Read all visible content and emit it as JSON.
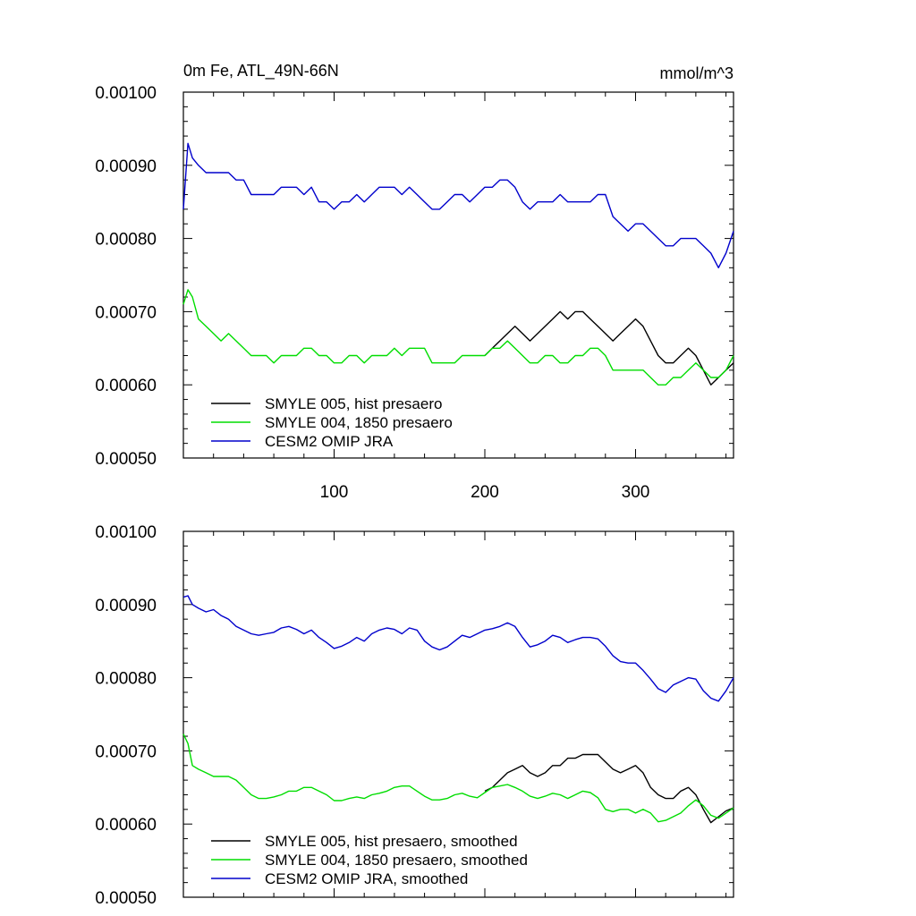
{
  "chart_data": [
    {
      "type": "line",
      "title": "0m Fe, ATL_49N-66N",
      "units": "mmol/m^3",
      "xlim": [
        0,
        365
      ],
      "ylim": [
        0.0005,
        0.001
      ],
      "yticks": [
        "0.00050",
        "0.00060",
        "0.00070",
        "0.00080",
        "0.00090",
        "0.00100"
      ],
      "xticks": [
        "100",
        "200",
        "300"
      ],
      "grid": false,
      "legend_position": "bottom-left",
      "series": [
        {
          "name": "SMYLE 005, hist presaero",
          "color": "#000000",
          "x": [
            200,
            205,
            210,
            215,
            220,
            225,
            230,
            235,
            240,
            245,
            250,
            255,
            260,
            265,
            270,
            275,
            280,
            285,
            290,
            295,
            300,
            305,
            310,
            315,
            320,
            325,
            330,
            335,
            340,
            345,
            350,
            355,
            360,
            365
          ],
          "values": [
            0.00064,
            0.00065,
            0.00066,
            0.00067,
            0.00068,
            0.00067,
            0.00066,
            0.00067,
            0.00068,
            0.00069,
            0.0007,
            0.00069,
            0.0007,
            0.0007,
            0.00069,
            0.00068,
            0.00067,
            0.00066,
            0.00067,
            0.00068,
            0.00069,
            0.00068,
            0.00066,
            0.00064,
            0.00063,
            0.00063,
            0.00064,
            0.00065,
            0.00064,
            0.00062,
            0.0006,
            0.00061,
            0.00062,
            0.00063
          ]
        },
        {
          "name": "SMYLE 004, 1850 presaero",
          "color": "#00dd00",
          "x": [
            0,
            3,
            6,
            10,
            15,
            20,
            25,
            30,
            35,
            40,
            45,
            50,
            55,
            60,
            65,
            70,
            75,
            80,
            85,
            90,
            95,
            100,
            105,
            110,
            115,
            120,
            125,
            130,
            135,
            140,
            145,
            150,
            155,
            160,
            165,
            170,
            175,
            180,
            185,
            190,
            195,
            200,
            205,
            210,
            215,
            220,
            225,
            230,
            235,
            240,
            245,
            250,
            255,
            260,
            265,
            270,
            275,
            280,
            285,
            290,
            295,
            300,
            305,
            310,
            315,
            320,
            325,
            330,
            335,
            340,
            345,
            350,
            355,
            360,
            365
          ],
          "values": [
            0.00071,
            0.00073,
            0.00072,
            0.00069,
            0.00068,
            0.00067,
            0.00066,
            0.00067,
            0.00066,
            0.00065,
            0.00064,
            0.00064,
            0.00064,
            0.00063,
            0.00064,
            0.00064,
            0.00064,
            0.00065,
            0.00065,
            0.00064,
            0.00064,
            0.00063,
            0.00063,
            0.00064,
            0.00064,
            0.00063,
            0.00064,
            0.00064,
            0.00064,
            0.00065,
            0.00064,
            0.00065,
            0.00065,
            0.00065,
            0.00063,
            0.00063,
            0.00063,
            0.00063,
            0.00064,
            0.00064,
            0.00064,
            0.00064,
            0.00065,
            0.00065,
            0.00066,
            0.00065,
            0.00064,
            0.00063,
            0.00063,
            0.00064,
            0.00064,
            0.00063,
            0.00063,
            0.00064,
            0.00064,
            0.00065,
            0.00065,
            0.00064,
            0.00062,
            0.00062,
            0.00062,
            0.00062,
            0.00062,
            0.00061,
            0.0006,
            0.0006,
            0.00061,
            0.00061,
            0.00062,
            0.00063,
            0.00062,
            0.00061,
            0.00061,
            0.00062,
            0.00064
          ]
        },
        {
          "name": "CESM2 OMIP JRA",
          "color": "#0000cc",
          "x": [
            0,
            3,
            6,
            10,
            15,
            20,
            25,
            30,
            35,
            40,
            45,
            50,
            55,
            60,
            65,
            70,
            75,
            80,
            85,
            90,
            95,
            100,
            105,
            110,
            115,
            120,
            125,
            130,
            135,
            140,
            145,
            150,
            155,
            160,
            165,
            170,
            175,
            180,
            185,
            190,
            195,
            200,
            205,
            210,
            215,
            220,
            225,
            230,
            235,
            240,
            245,
            250,
            255,
            260,
            265,
            270,
            275,
            280,
            285,
            290,
            295,
            300,
            305,
            310,
            315,
            320,
            325,
            330,
            335,
            340,
            345,
            350,
            355,
            360,
            365
          ],
          "values": [
            0.00084,
            0.00093,
            0.00091,
            0.0009,
            0.00089,
            0.00089,
            0.00089,
            0.00089,
            0.00088,
            0.00088,
            0.00086,
            0.00086,
            0.00086,
            0.00086,
            0.00087,
            0.00087,
            0.00087,
            0.00086,
            0.00087,
            0.00085,
            0.00085,
            0.00084,
            0.00085,
            0.00085,
            0.00086,
            0.00085,
            0.00086,
            0.00087,
            0.00087,
            0.00087,
            0.00086,
            0.00087,
            0.00086,
            0.00085,
            0.00084,
            0.00084,
            0.00085,
            0.00086,
            0.00086,
            0.00085,
            0.00086,
            0.00087,
            0.00087,
            0.00088,
            0.00088,
            0.00087,
            0.00085,
            0.00084,
            0.00085,
            0.00085,
            0.00085,
            0.00086,
            0.00085,
            0.00085,
            0.00085,
            0.00085,
            0.00086,
            0.00086,
            0.00083,
            0.00082,
            0.00081,
            0.00082,
            0.00082,
            0.00081,
            0.0008,
            0.00079,
            0.00079,
            0.0008,
            0.0008,
            0.0008,
            0.00079,
            0.00078,
            0.00076,
            0.00078,
            0.00081
          ]
        }
      ]
    },
    {
      "type": "line",
      "xlim": [
        0,
        365
      ],
      "ylim": [
        0.0005,
        0.001
      ],
      "yticks": [
        "0.00050",
        "0.00060",
        "0.00070",
        "0.00080",
        "0.00090",
        "0.00100"
      ],
      "grid": false,
      "legend_position": "bottom-left",
      "series": [
        {
          "name": "SMYLE 005, hist presaero, smoothed",
          "color": "#000000",
          "x": [
            200,
            205,
            210,
            215,
            220,
            225,
            230,
            235,
            240,
            245,
            250,
            255,
            260,
            265,
            270,
            275,
            280,
            285,
            290,
            295,
            300,
            305,
            310,
            315,
            320,
            325,
            330,
            335,
            340,
            345,
            350,
            355,
            360,
            365
          ],
          "values": [
            0.000645,
            0.00065,
            0.00066,
            0.00067,
            0.000675,
            0.00068,
            0.00067,
            0.000665,
            0.00067,
            0.00068,
            0.00068,
            0.00069,
            0.00069,
            0.000695,
            0.000695,
            0.000695,
            0.000685,
            0.000675,
            0.00067,
            0.000675,
            0.00068,
            0.00067,
            0.00065,
            0.00064,
            0.000635,
            0.000635,
            0.000645,
            0.00065,
            0.00064,
            0.00062,
            0.000602,
            0.00061,
            0.000618,
            0.000622
          ]
        },
        {
          "name": "SMYLE 004, 1850 presaero, smoothed",
          "color": "#00dd00",
          "x": [
            0,
            3,
            6,
            10,
            15,
            20,
            25,
            30,
            35,
            40,
            45,
            50,
            55,
            60,
            65,
            70,
            75,
            80,
            85,
            90,
            95,
            100,
            105,
            110,
            115,
            120,
            125,
            130,
            135,
            140,
            145,
            150,
            155,
            160,
            165,
            170,
            175,
            180,
            185,
            190,
            195,
            200,
            205,
            210,
            215,
            220,
            225,
            230,
            235,
            240,
            245,
            250,
            255,
            260,
            265,
            270,
            275,
            280,
            285,
            290,
            295,
            300,
            305,
            310,
            315,
            320,
            325,
            330,
            335,
            340,
            345,
            350,
            355,
            360,
            365
          ],
          "values": [
            0.000723,
            0.00071,
            0.00068,
            0.000675,
            0.00067,
            0.000665,
            0.000665,
            0.000665,
            0.00066,
            0.00065,
            0.00064,
            0.000635,
            0.000635,
            0.000637,
            0.00064,
            0.000645,
            0.000645,
            0.00065,
            0.00065,
            0.000645,
            0.00064,
            0.000632,
            0.000632,
            0.000635,
            0.000637,
            0.000635,
            0.00064,
            0.000642,
            0.000645,
            0.00065,
            0.000652,
            0.000652,
            0.000645,
            0.000638,
            0.000633,
            0.000633,
            0.000635,
            0.00064,
            0.000642,
            0.000638,
            0.000636,
            0.000643,
            0.00065,
            0.000652,
            0.000654,
            0.00065,
            0.000645,
            0.000638,
            0.000635,
            0.000638,
            0.000642,
            0.00064,
            0.000635,
            0.00064,
            0.000645,
            0.000643,
            0.000636,
            0.00062,
            0.000617,
            0.00062,
            0.00062,
            0.000615,
            0.00062,
            0.000615,
            0.000603,
            0.000605,
            0.00061,
            0.000615,
            0.000625,
            0.000633,
            0.000625,
            0.000612,
            0.000608,
            0.000615,
            0.000622
          ]
        },
        {
          "name": "CESM2 OMIP JRA, smoothed",
          "color": "#0000cc",
          "x": [
            0,
            3,
            6,
            10,
            15,
            20,
            25,
            30,
            35,
            40,
            45,
            50,
            55,
            60,
            65,
            70,
            75,
            80,
            85,
            90,
            95,
            100,
            105,
            110,
            115,
            120,
            125,
            130,
            135,
            140,
            145,
            150,
            155,
            160,
            165,
            170,
            175,
            180,
            185,
            190,
            195,
            200,
            205,
            210,
            215,
            220,
            225,
            230,
            235,
            240,
            245,
            250,
            255,
            260,
            265,
            270,
            275,
            280,
            285,
            290,
            295,
            300,
            305,
            310,
            315,
            320,
            325,
            330,
            335,
            340,
            345,
            350,
            355,
            360,
            365
          ],
          "values": [
            0.00091,
            0.000912,
            0.0009,
            0.000895,
            0.00089,
            0.000893,
            0.000885,
            0.00088,
            0.00087,
            0.000865,
            0.00086,
            0.000858,
            0.00086,
            0.000862,
            0.000868,
            0.00087,
            0.000866,
            0.00086,
            0.000865,
            0.000855,
            0.000848,
            0.00084,
            0.000843,
            0.000848,
            0.000855,
            0.00085,
            0.00086,
            0.000865,
            0.000868,
            0.000866,
            0.00086,
            0.000868,
            0.000865,
            0.00085,
            0.000842,
            0.000838,
            0.000842,
            0.00085,
            0.000858,
            0.000855,
            0.00086,
            0.000865,
            0.000867,
            0.00087,
            0.000875,
            0.00087,
            0.000855,
            0.000842,
            0.000845,
            0.00085,
            0.000858,
            0.000855,
            0.000848,
            0.000852,
            0.000855,
            0.000855,
            0.000853,
            0.000843,
            0.00083,
            0.000822,
            0.00082,
            0.00082,
            0.00081,
            0.000798,
            0.000785,
            0.00078,
            0.00079,
            0.000795,
            0.0008,
            0.000798,
            0.000782,
            0.000772,
            0.000768,
            0.000782,
            0.0008
          ]
        }
      ]
    }
  ]
}
